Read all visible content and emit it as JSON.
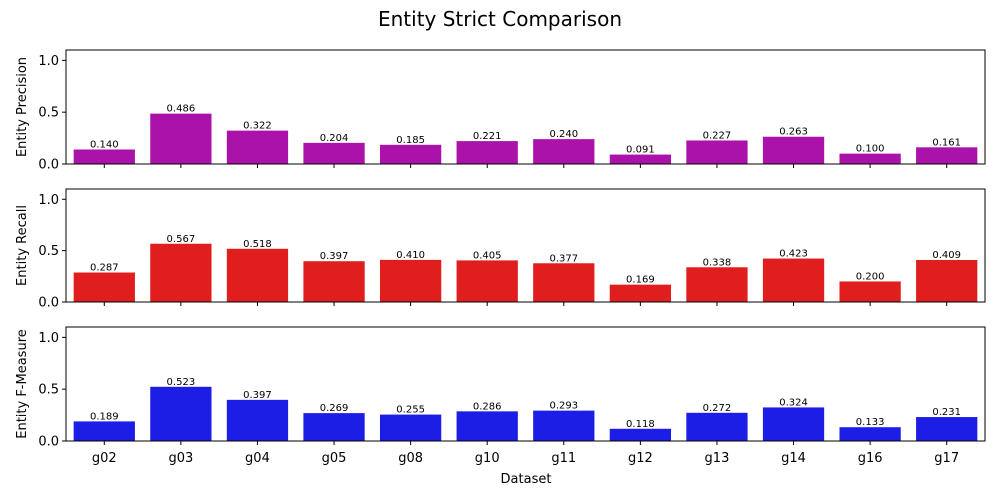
{
  "chart_data": {
    "type": "bar",
    "title": "Entity Strict Comparison",
    "xlabel": "Dataset",
    "categories": [
      "g02",
      "g03",
      "g04",
      "g05",
      "g08",
      "g10",
      "g11",
      "g12",
      "g13",
      "g14",
      "g16",
      "g17"
    ],
    "ylim": [
      0,
      1.1
    ],
    "yticks": [
      "0.0",
      "0.5",
      "1.0"
    ],
    "grid": false,
    "shared_x": true,
    "panels": [
      {
        "ylabel": "Entity Precision",
        "color": "#aa12aa",
        "values": [
          0.14,
          0.486,
          0.322,
          0.204,
          0.185,
          0.221,
          0.24,
          0.091,
          0.227,
          0.263,
          0.1,
          0.161
        ],
        "labels": [
          "0.140",
          "0.486",
          "0.322",
          "0.204",
          "0.185",
          "0.221",
          "0.240",
          "0.091",
          "0.227",
          "0.263",
          "0.100",
          "0.161"
        ]
      },
      {
        "ylabel": "Entity Recall",
        "color": "#e01e1e",
        "values": [
          0.287,
          0.567,
          0.518,
          0.397,
          0.41,
          0.405,
          0.377,
          0.169,
          0.338,
          0.423,
          0.2,
          0.409
        ],
        "labels": [
          "0.287",
          "0.567",
          "0.518",
          "0.397",
          "0.410",
          "0.405",
          "0.377",
          "0.169",
          "0.338",
          "0.423",
          "0.200",
          "0.409"
        ]
      },
      {
        "ylabel": "Entity F-Measure",
        "color": "#1c1ee6",
        "values": [
          0.189,
          0.523,
          0.397,
          0.269,
          0.255,
          0.286,
          0.293,
          0.118,
          0.272,
          0.324,
          0.133,
          0.231
        ],
        "labels": [
          "0.189",
          "0.523",
          "0.397",
          "0.269",
          "0.255",
          "0.286",
          "0.293",
          "0.118",
          "0.272",
          "0.324",
          "0.133",
          "0.231"
        ]
      }
    ]
  }
}
